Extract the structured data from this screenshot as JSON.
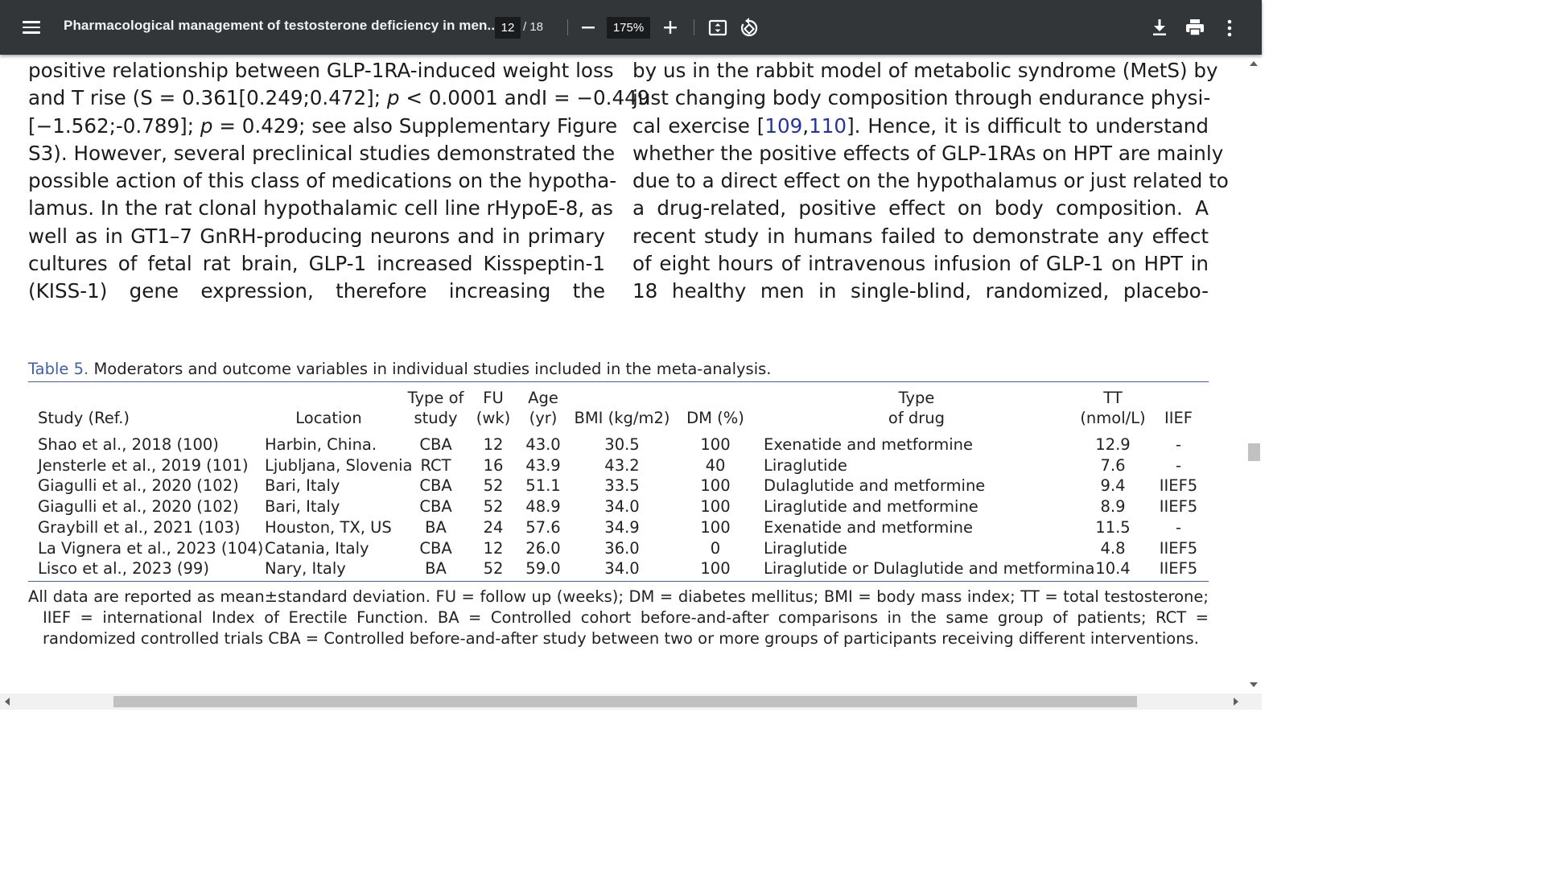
{
  "toolbar": {
    "title": "Pharmacological management of testosterone deficiency in men...",
    "page_current": "12",
    "page_total": "/ 18",
    "zoom": "175%",
    "icons": [
      "menu-icon",
      "zoom-out-icon",
      "zoom-in-icon",
      "fit-page-icon",
      "rotate-icon",
      "download-icon",
      "print-icon",
      "more-options-icon"
    ]
  },
  "left_column": [
    "positive relationship between GLP-1RA-induced weight loss",
    "and T rise (S = 0.361[0.249;0.472]; p < 0.0001 andI = −0.449",
    "[−1.562;-0.789]; p = 0.429; see also Supplementary Figure",
    "S3). However, several preclinical studies demonstrated the",
    "possible action of this class of medications on the hypotha-",
    "lamus. In the rat clonal hypothalamic cell line rHypoE-8, as",
    "well as in GT1–7 GnRH-producing neurons and in primary",
    "cultures of fetal rat brain, GLP-1 increased Kisspeptin-1",
    "(KISS-1) gene expression, therefore increasing the"
  ],
  "right_column": [
    "by us in the rabbit model of metabolic syndrome (MetS) by",
    "just changing body composition through endurance physi-",
    "cal exercise [109,110]. Hence, it is difficult to understand",
    "whether the positive effects of GLP-1RAs on HPT are mainly",
    "due to a direct effect on the hypothalamus or just related to",
    "a drug-related, positive effect on body composition. A",
    "recent study in humans failed to demonstrate any effect",
    "of eight hours of intravenous infusion of GLP-1 on HPT in",
    "18 healthy men in single-blind, randomized, placebo-"
  ],
  "right_refs": {
    "pre": "cal exercise [",
    "r1": "109",
    "comma": ",",
    "r2": "110",
    "post": "]. Hence, it is difficult to understand"
  },
  "table": {
    "caption_label": "Table 5.",
    "caption_text": "Moderators and outcome variables in individual studies included in the meta-analysis.",
    "headers": [
      [
        "",
        "Study (Ref.)"
      ],
      [
        "",
        "Location"
      ],
      [
        "Type of",
        "study"
      ],
      [
        "FU",
        "(wk)"
      ],
      [
        "Age",
        "(yr)"
      ],
      [
        "",
        "BMI (kg/m2)"
      ],
      [
        "",
        "DM (%)"
      ],
      [
        "Type",
        "of drug"
      ],
      [
        "TT",
        "(nmol/L)"
      ],
      [
        "",
        "IIEF"
      ]
    ],
    "rows": [
      [
        "Shao et al., 2018 (100)",
        "Harbin, China.",
        "CBA",
        "12",
        "43.0",
        "30.5",
        "100",
        "Exenatide and metformine",
        "12.9",
        "-"
      ],
      [
        "Jensterle et al., 2019 (101)",
        "Ljubljana, Slovenia",
        "RCT",
        "16",
        "43.9",
        "43.2",
        "40",
        "Liraglutide",
        "7.6",
        "-"
      ],
      [
        "Giagulli et al., 2020 (102)",
        "Bari, Italy",
        "CBA",
        "52",
        "51.1",
        "33.5",
        "100",
        "Dulaglutide and metformine",
        "9.4",
        "IIEF5"
      ],
      [
        "Giagulli et al., 2020 (102)",
        "Bari, Italy",
        "CBA",
        "52",
        "48.9",
        "34.0",
        "100",
        "Liraglutide and metformine",
        "8.9",
        "IIEF5"
      ],
      [
        "Graybill et al., 2021 (103)",
        "Houston, TX, US",
        "BA",
        "24",
        "57.6",
        "34.9",
        "100",
        "Exenatide and metformine",
        "11.5",
        "-"
      ],
      [
        "La Vignera et al., 2023 (104)",
        "Catania, Italy",
        "CBA",
        "12",
        "26.0",
        "36.0",
        "0",
        "Liraglutide",
        "4.8",
        "IIEF5"
      ],
      [
        "Lisco et al., 2023 (99)",
        "Nary, Italy",
        "BA",
        "52",
        "59.0",
        "34.0",
        "100",
        "Liraglutide or Dulaglutide and metformina",
        "10.4",
        "IIEF5"
      ]
    ],
    "footnote": "All data are reported as mean±standard deviation. FU = follow up (weeks); DM = diabetes mellitus; BMI = body mass index; TT = total testosterone; IIEF = international Index of Erectile Function. BA = Controlled cohort before-and-after comparisons in the same group of patients; RCT = randomized controlled trials CBA = Controlled before-and-after study between two or more groups of participants receiving different interventions."
  },
  "colors": {
    "toolbar_bg": "#323639",
    "caption_blue": "#3f61a8",
    "ref_blue": "#2434a3"
  }
}
